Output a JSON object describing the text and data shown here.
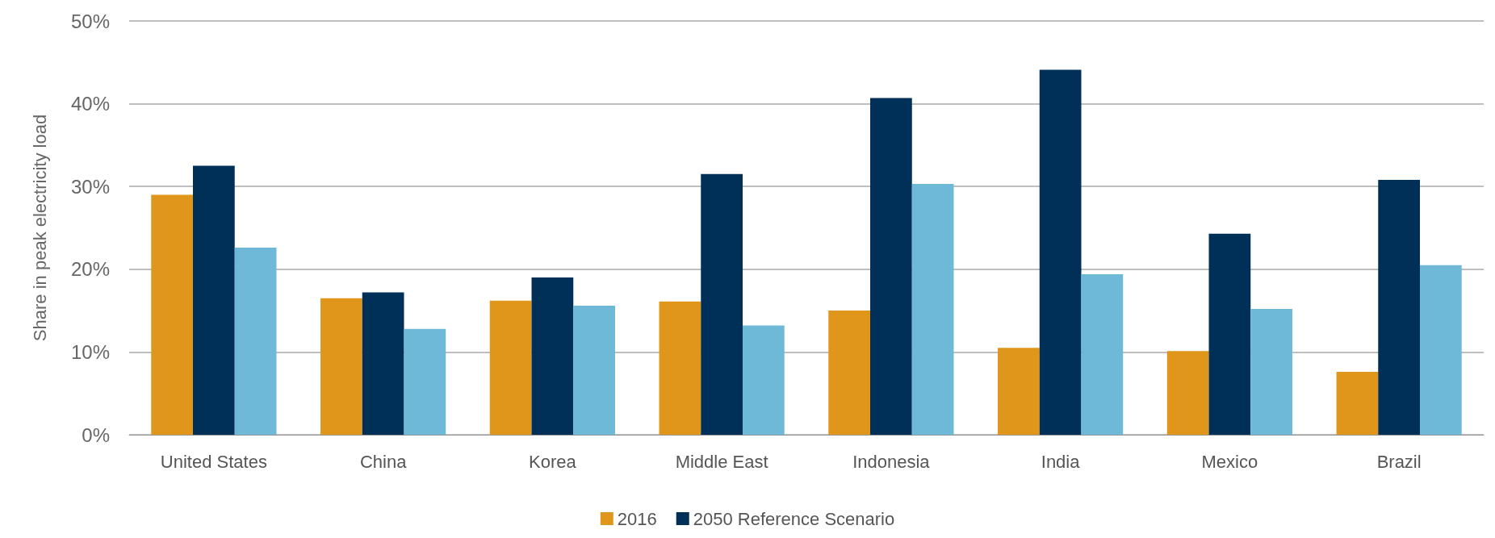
{
  "chart_data": {
    "type": "bar",
    "ylabel": "Share in peak electricity load",
    "categories": [
      "United States",
      "China",
      "Korea",
      "Middle East",
      "Indonesia",
      "India",
      "Mexico",
      "Brazil"
    ],
    "series": [
      {
        "name": "2016",
        "color": "#e0961a",
        "values": [
          29,
          16.5,
          16.2,
          16.1,
          15,
          10.5,
          10.1,
          7.6
        ]
      },
      {
        "name": "2050 Reference Scenario",
        "color": "#003057",
        "values": [
          32.5,
          17.2,
          19,
          31.5,
          40.7,
          44.1,
          24.3,
          30.8
        ]
      },
      {
        "color": "#6fb9d8",
        "values": [
          22.6,
          12.8,
          15.6,
          13.2,
          30.3,
          19.4,
          15.2,
          20.5
        ]
      }
    ],
    "ylim": [
      0,
      50
    ],
    "yticks": [
      {
        "value": 0,
        "label": "0%"
      },
      {
        "value": 10,
        "label": "10%"
      },
      {
        "value": 20,
        "label": "20%"
      },
      {
        "value": 30,
        "label": "30%"
      },
      {
        "value": 40,
        "label": "40%"
      },
      {
        "value": 50,
        "label": "50%"
      }
    ],
    "grid": "y",
    "legend": "bottom"
  }
}
